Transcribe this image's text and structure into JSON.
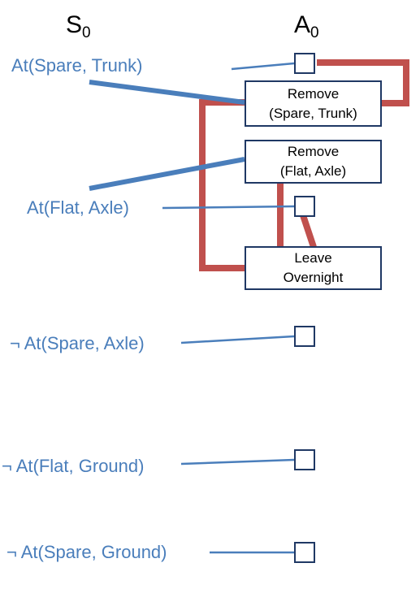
{
  "headers": {
    "state_level": {
      "base": "S",
      "sub": "0"
    },
    "action_level": {
      "base": "A",
      "sub": "0"
    }
  },
  "states": [
    "At(Spare, Trunk)",
    "At(Flat, Axle)",
    "¬ At(Spare, Axle)",
    "¬ At(Flat, Ground)",
    "¬ At(Spare, Ground)"
  ],
  "actions": [
    "Remove\n(Spare, Trunk)",
    "Remove\n(Flat, Axle)",
    "Leave\nOvernight"
  ],
  "colors": {
    "precondition_link": "#4a7ebb",
    "mutex_link": "#c0504d",
    "box_border": "#1f3864",
    "state_text": "#4a7ebb"
  }
}
